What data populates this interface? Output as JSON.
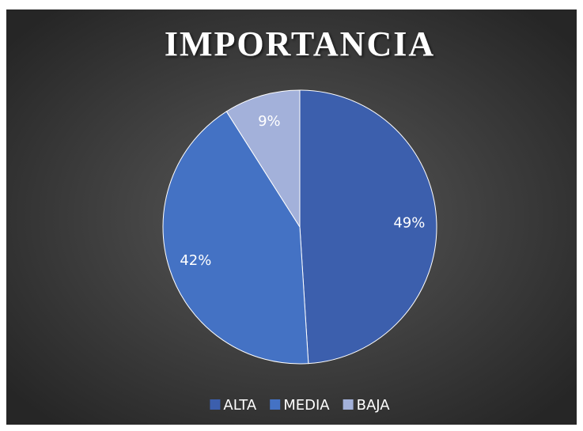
{
  "chart_data": {
    "type": "pie",
    "title": "IMPORTANCIA",
    "categories": [
      "ALTA",
      "MEDIA",
      "BAJA"
    ],
    "values": [
      49,
      42,
      9
    ],
    "value_labels": [
      "49%",
      "42%",
      "9%"
    ],
    "colors": [
      "#3c5fad",
      "#4472c4",
      "#a3b1da"
    ],
    "legend": "bottom"
  }
}
